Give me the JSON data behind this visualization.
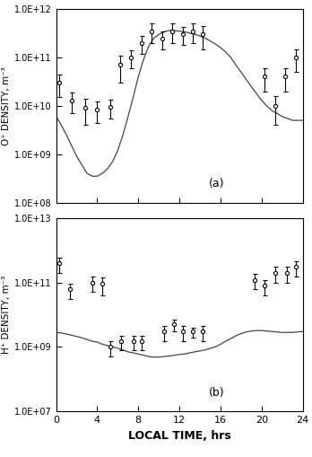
{
  "panel_a": {
    "ylabel": "O⁺ DENSITY, m⁻³",
    "ylim": [
      100000000.0,
      1000000000000.0
    ],
    "yticks": [
      100000000.0,
      1000000000.0,
      10000000000.0,
      100000000000.0,
      1000000000000.0
    ],
    "yticklabels": [
      "1.0E+08",
      "1.0E+09",
      "1.0E+10",
      "1.0E+11",
      "1.0E+12"
    ],
    "label": "(a)",
    "measured_x": [
      0.3,
      1.5,
      2.8,
      4.0,
      5.3,
      6.2,
      7.3,
      8.3,
      9.3,
      10.3,
      11.3,
      12.3,
      13.3,
      14.3,
      20.3,
      21.3,
      22.3,
      23.3
    ],
    "measured_y": [
      30000000000.0,
      13000000000.0,
      9000000000.0,
      8500000000.0,
      9500000000.0,
      70000000000.0,
      100000000000.0,
      200000000000.0,
      350000000000.0,
      250000000000.0,
      350000000000.0,
      300000000000.0,
      350000000000.0,
      300000000000.0,
      40000000000.0,
      10000000000.0,
      40000000000.0,
      100000000000.0
    ],
    "measured_yerr_lo": [
      15000000000.0,
      6000000000.0,
      5000000000.0,
      4000000000.0,
      4000000000.0,
      40000000000.0,
      40000000000.0,
      80000000000.0,
      150000000000.0,
      100000000000.0,
      150000000000.0,
      120000000000.0,
      150000000000.0,
      150000000000.0,
      20000000000.0,
      6000000000.0,
      20000000000.0,
      50000000000.0
    ],
    "measured_yerr_hi": [
      15000000000.0,
      6000000000.0,
      5000000000.0,
      4000000000.0,
      4000000000.0,
      40000000000.0,
      40000000000.0,
      80000000000.0,
      150000000000.0,
      100000000000.0,
      150000000000.0,
      120000000000.0,
      150000000000.0,
      150000000000.0,
      20000000000.0,
      6000000000.0,
      20000000000.0,
      50000000000.0
    ],
    "sim_x": [
      0,
      0.5,
      1,
      1.5,
      2,
      2.5,
      3,
      3.5,
      4,
      4.5,
      5,
      5.5,
      6,
      6.5,
      7,
      7.5,
      8,
      8.5,
      9,
      9.5,
      10,
      10.5,
      11,
      11.5,
      12,
      12.5,
      13,
      13.5,
      14,
      14.5,
      15,
      15.5,
      16,
      16.5,
      17,
      17.5,
      18,
      18.5,
      19,
      19.5,
      20,
      20.5,
      21,
      21.5,
      22,
      22.5,
      23,
      23.5,
      24
    ],
    "sim_y": [
      6000000000.0,
      4000000000.0,
      2500000000.0,
      1500000000.0,
      900000000.0,
      600000000.0,
      400000000.0,
      350000000.0,
      350000000.0,
      400000000.0,
      500000000.0,
      700000000.0,
      1200000000.0,
      2500000000.0,
      6000000000.0,
      15000000000.0,
      40000000000.0,
      90000000000.0,
      170000000000.0,
      250000000000.0,
      300000000000.0,
      340000000000.0,
      360000000000.0,
      360000000000.0,
      350000000000.0,
      340000000000.0,
      320000000000.0,
      300000000000.0,
      280000000000.0,
      250000000000.0,
      220000000000.0,
      190000000000.0,
      160000000000.0,
      130000000000.0,
      100000000000.0,
      70000000000.0,
      50000000000.0,
      35000000000.0,
      25000000000.0,
      18000000000.0,
      13000000000.0,
      10000000000.0,
      8000000000.0,
      7000000000.0,
      6000000000.0,
      5500000000.0,
      5000000000.0,
      5000000000.0,
      5000000000.0
    ]
  },
  "panel_b": {
    "ylabel": "H⁺ DENSITY, m⁻³",
    "ylim": [
      10000000.0,
      10000000000000.0
    ],
    "yticks": [
      10000000.0,
      1000000000.0,
      100000000000.0,
      10000000000000.0
    ],
    "yticklabels": [
      "1.0E+07",
      "1.0E+09",
      "1.0E+11",
      "1.0E+13"
    ],
    "label": "(b)",
    "measured_x": [
      0.3,
      1.3,
      3.5,
      4.5,
      5.3,
      6.3,
      7.5,
      8.3,
      10.5,
      11.5,
      12.3,
      13.3,
      14.3,
      19.3,
      20.3,
      21.3,
      22.5,
      23.3
    ],
    "measured_y": [
      400000000000.0,
      60000000000.0,
      100000000000.0,
      90000000000.0,
      1000000000.0,
      1500000000.0,
      1500000000.0,
      1500000000.0,
      3000000000.0,
      5000000000.0,
      3000000000.0,
      3000000000.0,
      3000000000.0,
      120000000000.0,
      80000000000.0,
      200000000000.0,
      200000000000.0,
      300000000000.0
    ],
    "measured_yerr_lo": [
      200000000000.0,
      30000000000.0,
      50000000000.0,
      50000000000.0,
      500000000.0,
      700000000.0,
      700000000.0,
      700000000.0,
      1500000000.0,
      2000000000.0,
      1500000000.0,
      1000000000.0,
      1500000000.0,
      60000000000.0,
      40000000000.0,
      100000000000.0,
      100000000000.0,
      150000000000.0
    ],
    "measured_yerr_hi": [
      200000000000.0,
      30000000000.0,
      50000000000.0,
      50000000000.0,
      500000000.0,
      700000000.0,
      700000000.0,
      700000000.0,
      1500000000.0,
      2000000000.0,
      1500000000.0,
      1000000000.0,
      1500000000.0,
      60000000000.0,
      40000000000.0,
      100000000000.0,
      100000000000.0,
      150000000000.0
    ],
    "sim_x": [
      0,
      0.5,
      1,
      1.5,
      2,
      2.5,
      3,
      3.5,
      4,
      4.5,
      5,
      5.5,
      6,
      6.5,
      7,
      7.5,
      8,
      8.5,
      9,
      9.5,
      10,
      10.5,
      11,
      11.5,
      12,
      12.5,
      13,
      13.5,
      14,
      14.5,
      15,
      15.5,
      16,
      16.5,
      17,
      17.5,
      18,
      18.5,
      19,
      19.5,
      20,
      20.5,
      21,
      21.5,
      22,
      22.5,
      23,
      23.5,
      24
    ],
    "sim_y": [
      2800000000.0,
      2700000000.0,
      2500000000.0,
      2300000000.0,
      2100000000.0,
      1900000000.0,
      1700000000.0,
      1500000000.0,
      1400000000.0,
      1200000000.0,
      1100000000.0,
      1000000000.0,
      900000000.0,
      800000000.0,
      700000000.0,
      650000000.0,
      600000000.0,
      550000000.0,
      500000000.0,
      480000000.0,
      480000000.0,
      500000000.0,
      520000000.0,
      550000000.0,
      580000000.0,
      600000000.0,
      650000000.0,
      700000000.0,
      750000000.0,
      800000000.0,
      900000000.0,
      1000000000.0,
      1200000000.0,
      1500000000.0,
      1800000000.0,
      2200000000.0,
      2600000000.0,
      2900000000.0,
      3100000000.0,
      3200000000.0,
      3200000000.0,
      3100000000.0,
      3000000000.0,
      2900000000.0,
      2800000000.0,
      2800000000.0,
      2800000000.0,
      2900000000.0,
      3000000000.0
    ]
  },
  "xlabel": "LOCAL TIME, hrs",
  "xlim": [
    0,
    24
  ],
  "xticks": [
    0,
    4,
    8,
    12,
    16,
    20,
    24
  ],
  "line_color": "#444444",
  "marker_color": "#000000",
  "background_color": "#ffffff"
}
